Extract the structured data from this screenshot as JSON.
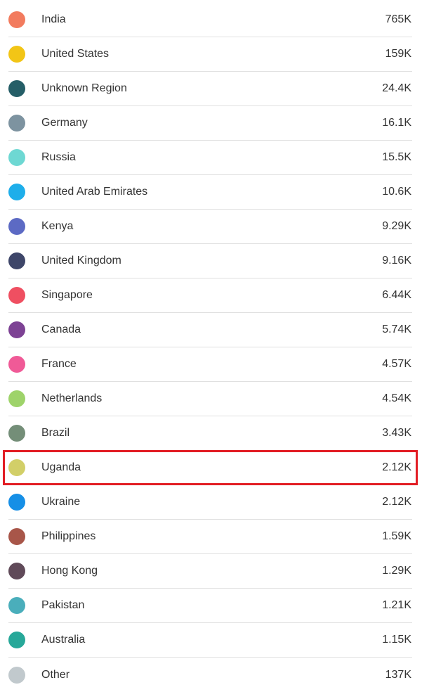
{
  "countries": [
    {
      "name": "India",
      "value": "765K",
      "color": "#f27b5e"
    },
    {
      "name": "United States",
      "value": "159K",
      "color": "#f2c516"
    },
    {
      "name": "Unknown Region",
      "value": "24.4K",
      "color": "#255e67"
    },
    {
      "name": "Germany",
      "value": "16.1K",
      "color": "#7d93a0"
    },
    {
      "name": "Russia",
      "value": "15.5K",
      "color": "#6ed8d3"
    },
    {
      "name": "United Arab Emirates",
      "value": "10.6K",
      "color": "#1eaeea"
    },
    {
      "name": "Kenya",
      "value": "9.29K",
      "color": "#5c6ac4"
    },
    {
      "name": "United Kingdom",
      "value": "9.16K",
      "color": "#3e4669"
    },
    {
      "name": "Singapore",
      "value": "6.44K",
      "color": "#ef4f61"
    },
    {
      "name": "Canada",
      "value": "5.74K",
      "color": "#7d4294"
    },
    {
      "name": "France",
      "value": "4.57K",
      "color": "#f05a97"
    },
    {
      "name": "Netherlands",
      "value": "4.54K",
      "color": "#9ed36a"
    },
    {
      "name": "Brazil",
      "value": "3.43K",
      "color": "#748e78"
    },
    {
      "name": "Uganda",
      "value": "2.12K",
      "color": "#d2cf68"
    },
    {
      "name": "Ukraine",
      "value": "2.12K",
      "color": "#168fe6"
    },
    {
      "name": "Philippines",
      "value": "1.59K",
      "color": "#a85649"
    },
    {
      "name": "Hong Kong",
      "value": "1.29K",
      "color": "#604a59"
    },
    {
      "name": "Pakistan",
      "value": "1.21K",
      "color": "#4aaebb"
    },
    {
      "name": "Australia",
      "value": "1.15K",
      "color": "#27a899"
    },
    {
      "name": "Other",
      "value": "137K",
      "color": "#c1c9cd"
    }
  ],
  "highlight": {
    "country": "Uganda",
    "color": "#e21d24"
  }
}
